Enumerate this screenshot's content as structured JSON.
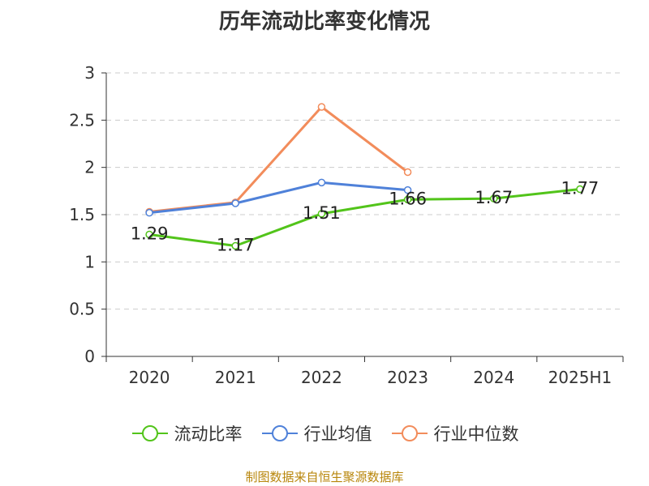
{
  "chart_data": {
    "type": "line",
    "title": "历年流动比率变化情况",
    "categories": [
      "2020",
      "2021",
      "2022",
      "2023",
      "2024",
      "2025H1"
    ],
    "y_ticks": [
      "0",
      "0.5",
      "1",
      "1.5",
      "2",
      "2.5",
      "3"
    ],
    "ylim": [
      0,
      3
    ],
    "grid": true,
    "legend_position": "bottom",
    "series": [
      {
        "name": "流动比率",
        "color": "#52c41a",
        "values": [
          1.29,
          1.17,
          1.51,
          1.66,
          1.67,
          1.77
        ],
        "labels": [
          "1.29",
          "1.17",
          "1.51",
          "1.66",
          "1.67",
          "1.77"
        ]
      },
      {
        "name": "行业均值",
        "color": "#4f81d9",
        "values": [
          1.52,
          1.62,
          1.84,
          1.76,
          null,
          null
        ]
      },
      {
        "name": "行业中位数",
        "color": "#f28c5b",
        "values": [
          1.53,
          1.63,
          2.64,
          1.95,
          null,
          null
        ]
      }
    ]
  },
  "source": "制图数据来自恒生聚源数据库"
}
